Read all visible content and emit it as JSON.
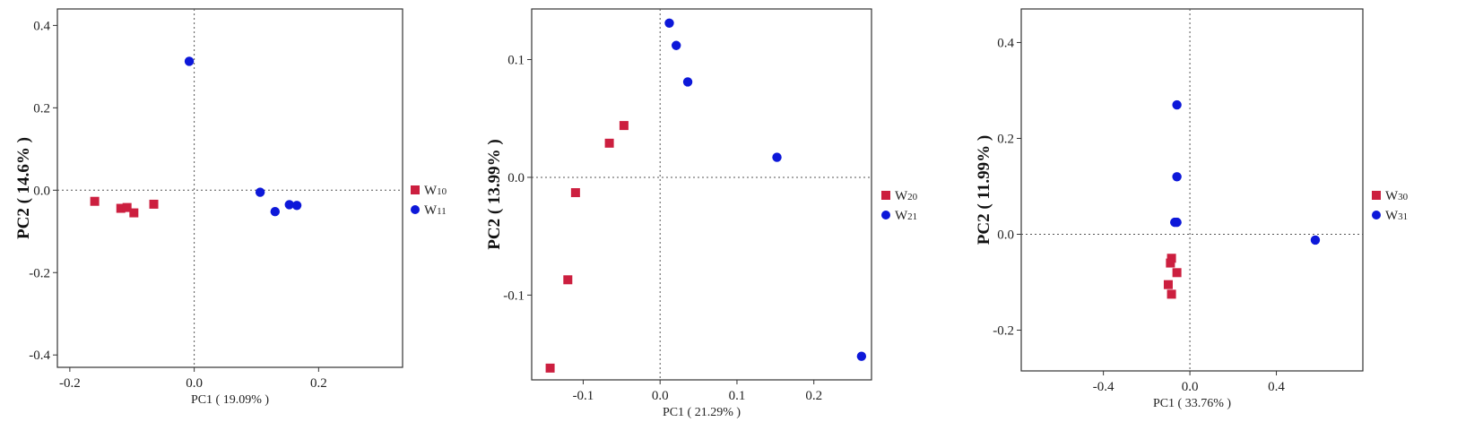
{
  "colors": {
    "groupA": "#cc1f3f",
    "groupB": "#0d18d9"
  },
  "chart_data": [
    {
      "type": "scatter",
      "xlabel": "PC1 ( 19.09% )",
      "ylabel": "PC2 ( 14.6% )",
      "xlim": [
        -0.22,
        0.335
      ],
      "ylim": [
        -0.43,
        0.44
      ],
      "xticks": [
        -0.2,
        0.0,
        0.2
      ],
      "xtick_labels": [
        "-0.2",
        "0.0",
        "0.2"
      ],
      "yticks": [
        -0.4,
        -0.2,
        0.0,
        0.2,
        0.4
      ],
      "ytick_labels": [
        "-0.4",
        "-0.2",
        "0.0",
        "0.2",
        "0.4"
      ],
      "grid": false,
      "reference_lines": {
        "x": 0,
        "y": 0
      },
      "legend_position": "right",
      "series": [
        {
          "name": "W",
          "subscript": "10",
          "marker": "square",
          "color": "#cc1f3f",
          "points": [
            [
              -0.16,
              -0.027
            ],
            [
              -0.118,
              -0.044
            ],
            [
              -0.108,
              -0.042
            ],
            [
              -0.097,
              -0.055
            ],
            [
              -0.065,
              -0.034
            ]
          ]
        },
        {
          "name": "W",
          "subscript": "11",
          "marker": "circle",
          "color": "#0d18d9",
          "points": [
            [
              -0.008,
              0.313
            ],
            [
              0.106,
              -0.005
            ],
            [
              0.13,
              -0.052
            ],
            [
              0.153,
              -0.035
            ],
            [
              0.165,
              -0.037
            ]
          ]
        }
      ]
    },
    {
      "type": "scatter",
      "xlabel": "PC1 ( 21.29% )",
      "ylabel": "PC2 ( 13.99% )",
      "xlim": [
        -0.167,
        0.275
      ],
      "ylim": [
        -0.172,
        0.143
      ],
      "xticks": [
        -0.1,
        0.0,
        0.1,
        0.2
      ],
      "xtick_labels": [
        "-0.1",
        "0.0",
        "0.1",
        "0.2"
      ],
      "yticks": [
        -0.1,
        0.0,
        0.1
      ],
      "ytick_labels": [
        "-0.1",
        "0.0",
        "0.1"
      ],
      "grid": false,
      "reference_lines": {
        "x": 0,
        "y": 0
      },
      "legend_position": "right",
      "series": [
        {
          "name": "W",
          "subscript": "20",
          "marker": "square",
          "color": "#cc1f3f",
          "points": [
            [
              -0.143,
              -0.162
            ],
            [
              -0.12,
              -0.087
            ],
            [
              -0.11,
              -0.013
            ],
            [
              -0.066,
              0.029
            ],
            [
              -0.047,
              0.044
            ]
          ]
        },
        {
          "name": "W",
          "subscript": "21",
          "marker": "circle",
          "color": "#0d18d9",
          "points": [
            [
              0.012,
              0.131
            ],
            [
              0.021,
              0.112
            ],
            [
              0.036,
              0.081
            ],
            [
              0.152,
              0.017
            ],
            [
              0.262,
              -0.152
            ]
          ]
        }
      ]
    },
    {
      "type": "scatter",
      "xlabel": "PC1 ( 33.76% )",
      "ylabel": "PC2 ( 11.99% )",
      "xlim": [
        -0.78,
        0.8
      ],
      "ylim": [
        -0.285,
        0.47
      ],
      "xticks": [
        -0.4,
        0.0,
        0.4
      ],
      "xtick_labels": [
        "-0.4",
        "0.0",
        "0.4"
      ],
      "yticks": [
        -0.2,
        0.0,
        0.2,
        0.4
      ],
      "ytick_labels": [
        "-0.2",
        "0.0",
        "0.2",
        "0.4"
      ],
      "grid": false,
      "reference_lines": {
        "x": 0,
        "y": 0
      },
      "legend_position": "right",
      "series": [
        {
          "name": "W",
          "subscript": "30",
          "marker": "square",
          "color": "#cc1f3f",
          "points": [
            [
              -0.085,
              -0.05
            ],
            [
              -0.09,
              -0.06
            ],
            [
              -0.06,
              -0.08
            ],
            [
              -0.1,
              -0.105
            ],
            [
              -0.085,
              -0.125
            ]
          ]
        },
        {
          "name": "W",
          "subscript": "31",
          "marker": "circle",
          "color": "#0d18d9",
          "points": [
            [
              -0.06,
              0.27
            ],
            [
              -0.06,
              0.12
            ],
            [
              -0.07,
              0.025
            ],
            [
              -0.06,
              0.025
            ],
            [
              0.58,
              -0.012
            ]
          ]
        }
      ]
    }
  ]
}
